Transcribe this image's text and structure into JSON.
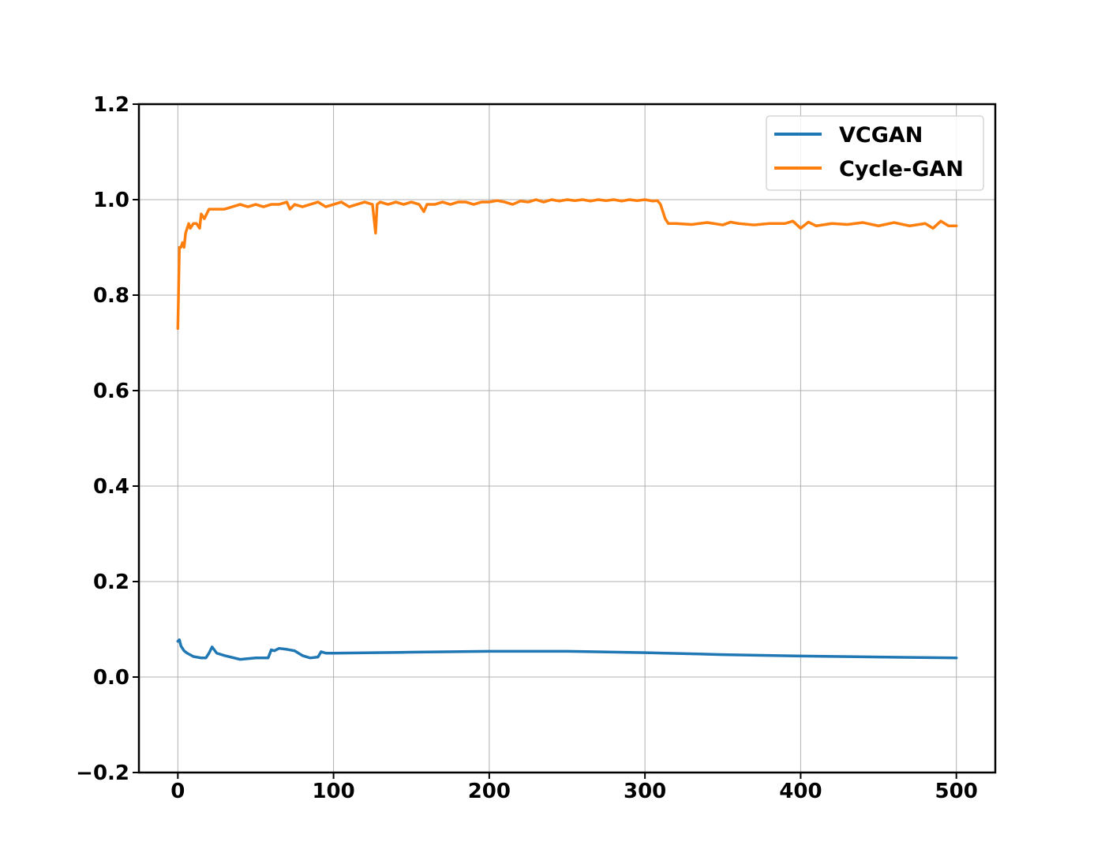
{
  "chart_data": {
    "type": "line",
    "title": "",
    "xlabel": "",
    "ylabel": "",
    "xlim": [
      -25,
      525
    ],
    "ylim": [
      -0.2,
      1.2
    ],
    "x_ticks": [
      0,
      100,
      200,
      300,
      400,
      500
    ],
    "x_tick_labels": [
      "0",
      "100",
      "200",
      "300",
      "400",
      "500"
    ],
    "y_ticks": [
      -0.2,
      0.0,
      0.2,
      0.4,
      0.6,
      0.8,
      1.0,
      1.2
    ],
    "y_tick_labels": [
      "−0.2",
      "0.0",
      "0.2",
      "0.4",
      "0.6",
      "0.8",
      "1.0",
      "1.2"
    ],
    "grid": true,
    "legend": {
      "position": "top-right",
      "entries": [
        "VCGAN",
        "Cycle-GAN"
      ]
    },
    "series": [
      {
        "name": "VCGAN",
        "color": "#1f77b4",
        "x": [
          0,
          1,
          2,
          4,
          6,
          10,
          15,
          18,
          20,
          22,
          25,
          30,
          40,
          50,
          58,
          60,
          62,
          65,
          70,
          75,
          80,
          85,
          90,
          92,
          95,
          100,
          150,
          200,
          250,
          300,
          350,
          400,
          450,
          500
        ],
        "y": [
          0.075,
          0.078,
          0.065,
          0.055,
          0.05,
          0.043,
          0.04,
          0.04,
          0.05,
          0.063,
          0.05,
          0.045,
          0.037,
          0.04,
          0.04,
          0.057,
          0.055,
          0.06,
          0.058,
          0.055,
          0.045,
          0.04,
          0.042,
          0.053,
          0.05,
          0.05,
          0.052,
          0.054,
          0.054,
          0.051,
          0.047,
          0.044,
          0.042,
          0.04
        ]
      },
      {
        "name": "Cycle-GAN",
        "color": "#ff7f0e",
        "x": [
          0,
          1,
          2,
          3,
          4,
          5,
          7,
          8,
          10,
          12,
          14,
          15,
          17,
          20,
          25,
          30,
          35,
          40,
          45,
          50,
          55,
          60,
          65,
          70,
          72,
          75,
          80,
          85,
          90,
          95,
          100,
          105,
          110,
          115,
          120,
          125,
          127,
          128,
          130,
          135,
          140,
          145,
          150,
          155,
          158,
          160,
          165,
          170,
          175,
          180,
          185,
          190,
          195,
          200,
          205,
          210,
          215,
          220,
          225,
          230,
          235,
          240,
          245,
          250,
          255,
          260,
          265,
          270,
          275,
          280,
          285,
          290,
          295,
          300,
          305,
          308,
          310,
          313,
          315,
          320,
          330,
          340,
          350,
          355,
          360,
          370,
          380,
          390,
          395,
          400,
          405,
          410,
          420,
          430,
          440,
          450,
          460,
          470,
          480,
          485,
          490,
          495,
          500
        ],
        "y": [
          0.73,
          0.9,
          0.9,
          0.91,
          0.9,
          0.93,
          0.95,
          0.94,
          0.95,
          0.95,
          0.94,
          0.97,
          0.96,
          0.98,
          0.98,
          0.98,
          0.985,
          0.99,
          0.985,
          0.99,
          0.985,
          0.99,
          0.99,
          0.995,
          0.98,
          0.99,
          0.985,
          0.99,
          0.995,
          0.985,
          0.99,
          0.995,
          0.985,
          0.99,
          0.995,
          0.99,
          0.93,
          0.99,
          0.995,
          0.99,
          0.995,
          0.99,
          0.995,
          0.99,
          0.975,
          0.99,
          0.99,
          0.995,
          0.99,
          0.995,
          0.995,
          0.99,
          0.995,
          0.995,
          0.998,
          0.995,
          0.99,
          0.997,
          0.995,
          1.0,
          0.995,
          1.0,
          0.997,
          1.0,
          0.998,
          1.0,
          0.997,
          1.0,
          0.998,
          1.0,
          0.997,
          1.0,
          0.998,
          1.0,
          0.997,
          0.998,
          0.99,
          0.96,
          0.95,
          0.95,
          0.948,
          0.952,
          0.947,
          0.953,
          0.95,
          0.947,
          0.95,
          0.95,
          0.955,
          0.94,
          0.953,
          0.945,
          0.95,
          0.948,
          0.952,
          0.945,
          0.952,
          0.945,
          0.95,
          0.94,
          0.955,
          0.945,
          0.945
        ]
      }
    ]
  }
}
